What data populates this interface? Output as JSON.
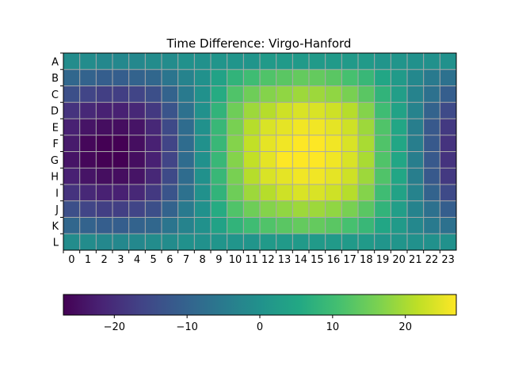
{
  "chart_data": {
    "type": "heatmap",
    "title": "Time Difference: Virgo-Hanford",
    "xlabel": "",
    "ylabel": "",
    "x_categories": [
      "0",
      "1",
      "2",
      "3",
      "4",
      "5",
      "6",
      "7",
      "8",
      "9",
      "10",
      "11",
      "12",
      "13",
      "14",
      "15",
      "16",
      "17",
      "18",
      "19",
      "20",
      "21",
      "22",
      "23"
    ],
    "y_categories": [
      "A",
      "B",
      "C",
      "D",
      "E",
      "F",
      "G",
      "H",
      "I",
      "J",
      "K",
      "L"
    ],
    "values": [
      [
        -1,
        -1,
        -2,
        -2,
        -2,
        -1,
        -1,
        0,
        0,
        1,
        1,
        1,
        2,
        2,
        2,
        2,
        2,
        2,
        2,
        1,
        1,
        0,
        0,
        0
      ],
      [
        -9,
        -10,
        -11,
        -11,
        -10,
        -9,
        -6,
        -3,
        0,
        4,
        8,
        10,
        12,
        13,
        14,
        14,
        13,
        11,
        9,
        5,
        2,
        -2,
        -5,
        -7
      ],
      [
        -14,
        -16,
        -17,
        -17,
        -16,
        -14,
        -10,
        -5,
        0,
        6,
        12,
        15,
        17,
        18,
        19,
        19,
        18,
        16,
        13,
        8,
        3,
        -3,
        -7,
        -11
      ],
      [
        -19,
        -21,
        -22,
        -22,
        -21,
        -18,
        -13,
        -7,
        0,
        8,
        15,
        19,
        21,
        23,
        24,
        24,
        23,
        21,
        17,
        10,
        4,
        -3,
        -10,
        -15
      ],
      [
        -22,
        -24,
        -25,
        -25,
        -24,
        -21,
        -15,
        -8,
        0,
        9,
        16,
        21,
        24,
        25,
        26,
        26,
        25,
        23,
        19,
        12,
        5,
        -4,
        -12,
        -18
      ],
      [
        -23,
        -26,
        -27,
        -27,
        -25,
        -22,
        -16,
        -8,
        0,
        9,
        17,
        22,
        25,
        26,
        27,
        27,
        26,
        24,
        20,
        12,
        5,
        -4,
        -12,
        -19
      ],
      [
        -24,
        -26,
        -27,
        -27,
        -25,
        -22,
        -16,
        -8,
        0,
        9,
        17,
        22,
        25,
        27,
        27,
        27,
        26,
        24,
        20,
        12,
        5,
        -4,
        -12,
        -19
      ],
      [
        -22,
        -24,
        -25,
        -25,
        -24,
        -21,
        -15,
        -8,
        0,
        9,
        16,
        21,
        24,
        25,
        26,
        26,
        25,
        23,
        19,
        12,
        5,
        -4,
        -12,
        -18
      ],
      [
        -19,
        -21,
        -22,
        -22,
        -21,
        -18,
        -13,
        -7,
        0,
        8,
        15,
        19,
        21,
        23,
        24,
        24,
        23,
        21,
        17,
        10,
        4,
        -3,
        -10,
        -15
      ],
      [
        -14,
        -16,
        -17,
        -17,
        -16,
        -14,
        -10,
        -5,
        0,
        6,
        12,
        15,
        17,
        18,
        19,
        19,
        18,
        16,
        13,
        8,
        3,
        -3,
        -7,
        -11
      ],
      [
        -9,
        -10,
        -11,
        -11,
        -10,
        -9,
        -6,
        -3,
        0,
        4,
        8,
        10,
        12,
        13,
        14,
        14,
        13,
        11,
        9,
        5,
        2,
        -2,
        -5,
        -7
      ],
      [
        -1,
        -1,
        -2,
        -2,
        -2,
        -1,
        -1,
        0,
        0,
        1,
        1,
        1,
        2,
        2,
        2,
        2,
        2,
        2,
        2,
        1,
        1,
        0,
        0,
        0
      ]
    ],
    "colormap": "viridis",
    "vmin": -27,
    "vmax": 27,
    "grid": true,
    "colorbar": {
      "orientation": "horizontal",
      "position": "bottom",
      "ticks": [
        -20,
        -10,
        0,
        10,
        20
      ],
      "tick_labels": [
        "−20",
        "−10",
        "0",
        "10",
        "20"
      ]
    }
  }
}
